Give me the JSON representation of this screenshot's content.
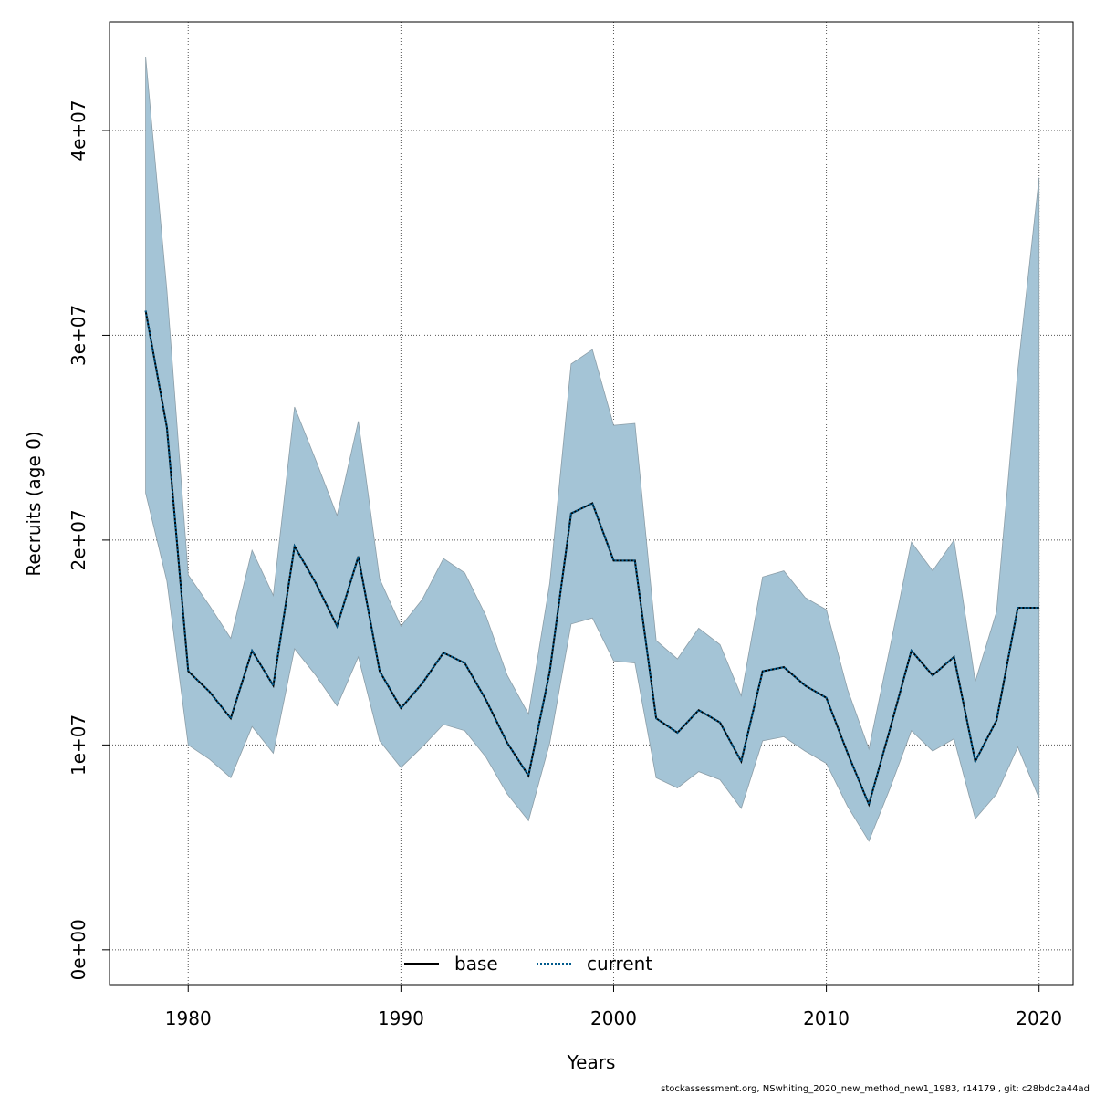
{
  "chart_data": {
    "type": "area",
    "xlabel": "Years",
    "ylabel": "Recruits (age 0)",
    "xlim": [
      1976.3,
      2021.6
    ],
    "ylim": [
      -1700000.0,
      45300000.0
    ],
    "x_ticks": [
      1980,
      1990,
      2000,
      2010,
      2020
    ],
    "x_tick_labels": [
      "1980",
      "1990",
      "2000",
      "2010",
      "2020"
    ],
    "y_ticks": [
      0,
      10000000,
      20000000,
      30000000,
      40000000
    ],
    "y_tick_labels": [
      "0e+00",
      "1e+07",
      "2e+07",
      "3e+07",
      "4e+07"
    ],
    "grid": true,
    "legend_position": "bottom-center",
    "band_color": "#a4c4d6",
    "band_edge_color": "#8c9ea8",
    "series": [
      {
        "name": "base",
        "style": "solid",
        "color": "#000000"
      },
      {
        "name": "current",
        "style": "dotted",
        "color": "#005a8c"
      }
    ],
    "x": [
      1978,
      1979,
      1980,
      1981,
      1982,
      1983,
      1984,
      1985,
      1986,
      1987,
      1988,
      1989,
      1990,
      1991,
      1992,
      1993,
      1994,
      1995,
      1996,
      1997,
      1998,
      1999,
      2000,
      2001,
      2002,
      2003,
      2004,
      2005,
      2006,
      2007,
      2008,
      2009,
      2010,
      2011,
      2012,
      2013,
      2014,
      2015,
      2016,
      2017,
      2018,
      2019,
      2020
    ],
    "estimate": [
      31200000.0,
      25500000.0,
      13600000.0,
      12600000.0,
      11300000.0,
      14600000.0,
      12900000.0,
      19700000.0,
      17900000.0,
      15800000.0,
      19200000.0,
      13600000.0,
      11800000.0,
      13000000.0,
      14500000.0,
      14000000.0,
      12200000.0,
      10100000.0,
      8500000.0,
      13600000.0,
      21300000.0,
      21800000.0,
      19000000.0,
      19000000.0,
      11300000.0,
      10600000.0,
      11700000.0,
      11100000.0,
      9200000.0,
      13600000.0,
      13800000.0,
      12900000.0,
      12300000.0,
      9600000.0,
      7100000.0,
      10800000.0,
      14600000.0,
      13400000.0,
      14300000.0,
      9200000.0,
      11200000.0,
      16700000.0,
      16700000.0
    ],
    "lower": [
      22300000.0,
      18000000.0,
      10000000.0,
      9300000.0,
      8400000.0,
      10900000.0,
      9600000.0,
      14700000.0,
      13400000.0,
      11900000.0,
      14300000.0,
      10200000.0,
      8900000.0,
      9900000.0,
      11000000.0,
      10700000.0,
      9400000.0,
      7600000.0,
      6300000.0,
      10100000.0,
      15900000.0,
      16200000.0,
      14100000.0,
      14000000.0,
      8400000.0,
      7900000.0,
      8700000.0,
      8300000.0,
      6900000.0,
      10200000.0,
      10400000.0,
      9700000.0,
      9100000.0,
      7000000.0,
      5300000.0,
      7900000.0,
      10700000.0,
      9700000.0,
      10300000.0,
      6400000.0,
      7600000.0,
      9900000.0,
      7400000.0
    ],
    "upper": [
      43600000.0,
      32200000.0,
      18300000.0,
      16800000.0,
      15200000.0,
      19500000.0,
      17300000.0,
      26500000.0,
      23900000.0,
      21200000.0,
      25800000.0,
      18100000.0,
      15800000.0,
      17100000.0,
      19100000.0,
      18400000.0,
      16300000.0,
      13400000.0,
      11500000.0,
      17900000.0,
      28600000.0,
      29300000.0,
      25600000.0,
      25700000.0,
      15100000.0,
      14200000.0,
      15700000.0,
      14900000.0,
      12400000.0,
      18200000.0,
      18500000.0,
      17200000.0,
      16600000.0,
      12700000.0,
      9800000.0,
      14800000.0,
      19900000.0,
      18500000.0,
      20000000.0,
      13100000.0,
      16500000.0,
      28300000.0,
      37700000.0
    ]
  },
  "caption": "stockassessment.org, NSwhiting_2020_new_method_new1_1983, r14179 , git: c28bdc2a44ad"
}
